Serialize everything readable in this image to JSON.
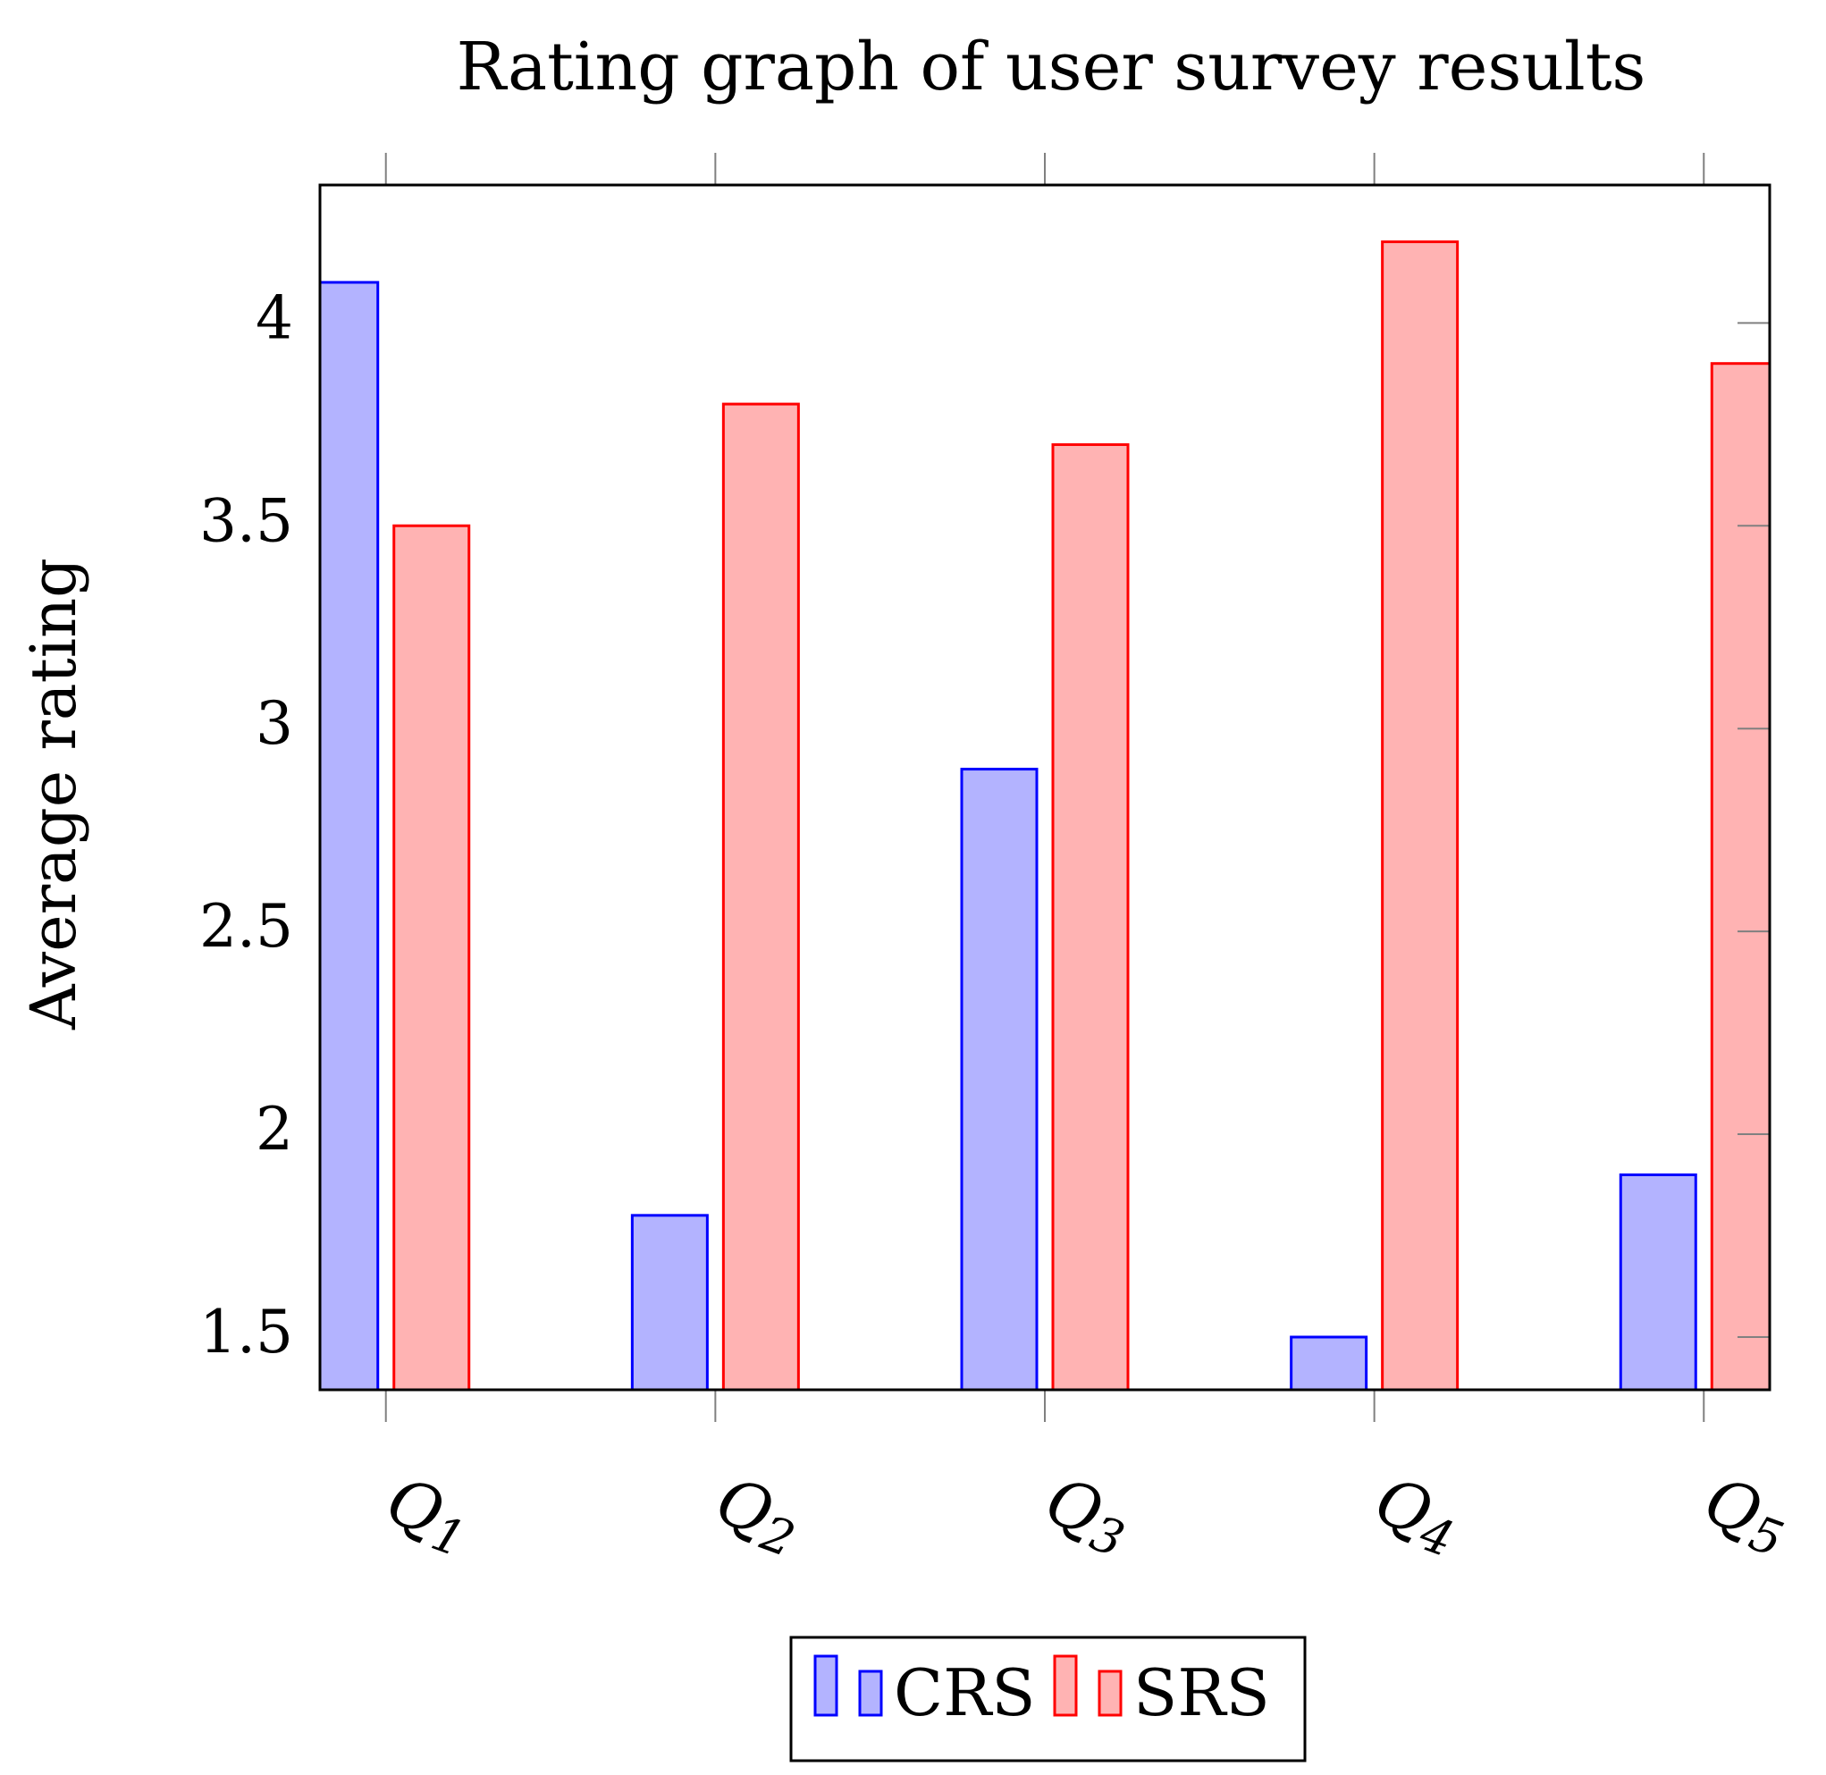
{
  "chart_data": {
    "type": "bar",
    "title": "Rating graph of user survey results",
    "xlabel": "",
    "ylabel": "Average rating",
    "categories": [
      "Q1",
      "Q2",
      "Q3",
      "Q4",
      "Q5"
    ],
    "category_subscripts": [
      "1",
      "2",
      "3",
      "4",
      "5"
    ],
    "category_letter": "Q",
    "yticks": [
      1.5,
      2,
      2.5,
      3,
      3.5,
      4
    ],
    "ytick_labels": [
      "1.5",
      "2",
      "2.5",
      "3",
      "3.5",
      "4"
    ],
    "ylim": [
      1.37,
      4.34
    ],
    "xlim": [
      0.8,
      5.2
    ],
    "grid": false,
    "legend_position": "bottom-center",
    "series": [
      {
        "name": "CRS",
        "values": [
          4.1,
          1.8,
          2.9,
          1.5,
          1.9
        ],
        "fill": "#b3b3ff",
        "stroke": "#0000ff"
      },
      {
        "name": "SRS",
        "values": [
          3.5,
          3.8,
          3.7,
          4.2,
          3.9
        ],
        "fill": "#ffb3b3",
        "stroke": "#ff0000"
      }
    ]
  }
}
